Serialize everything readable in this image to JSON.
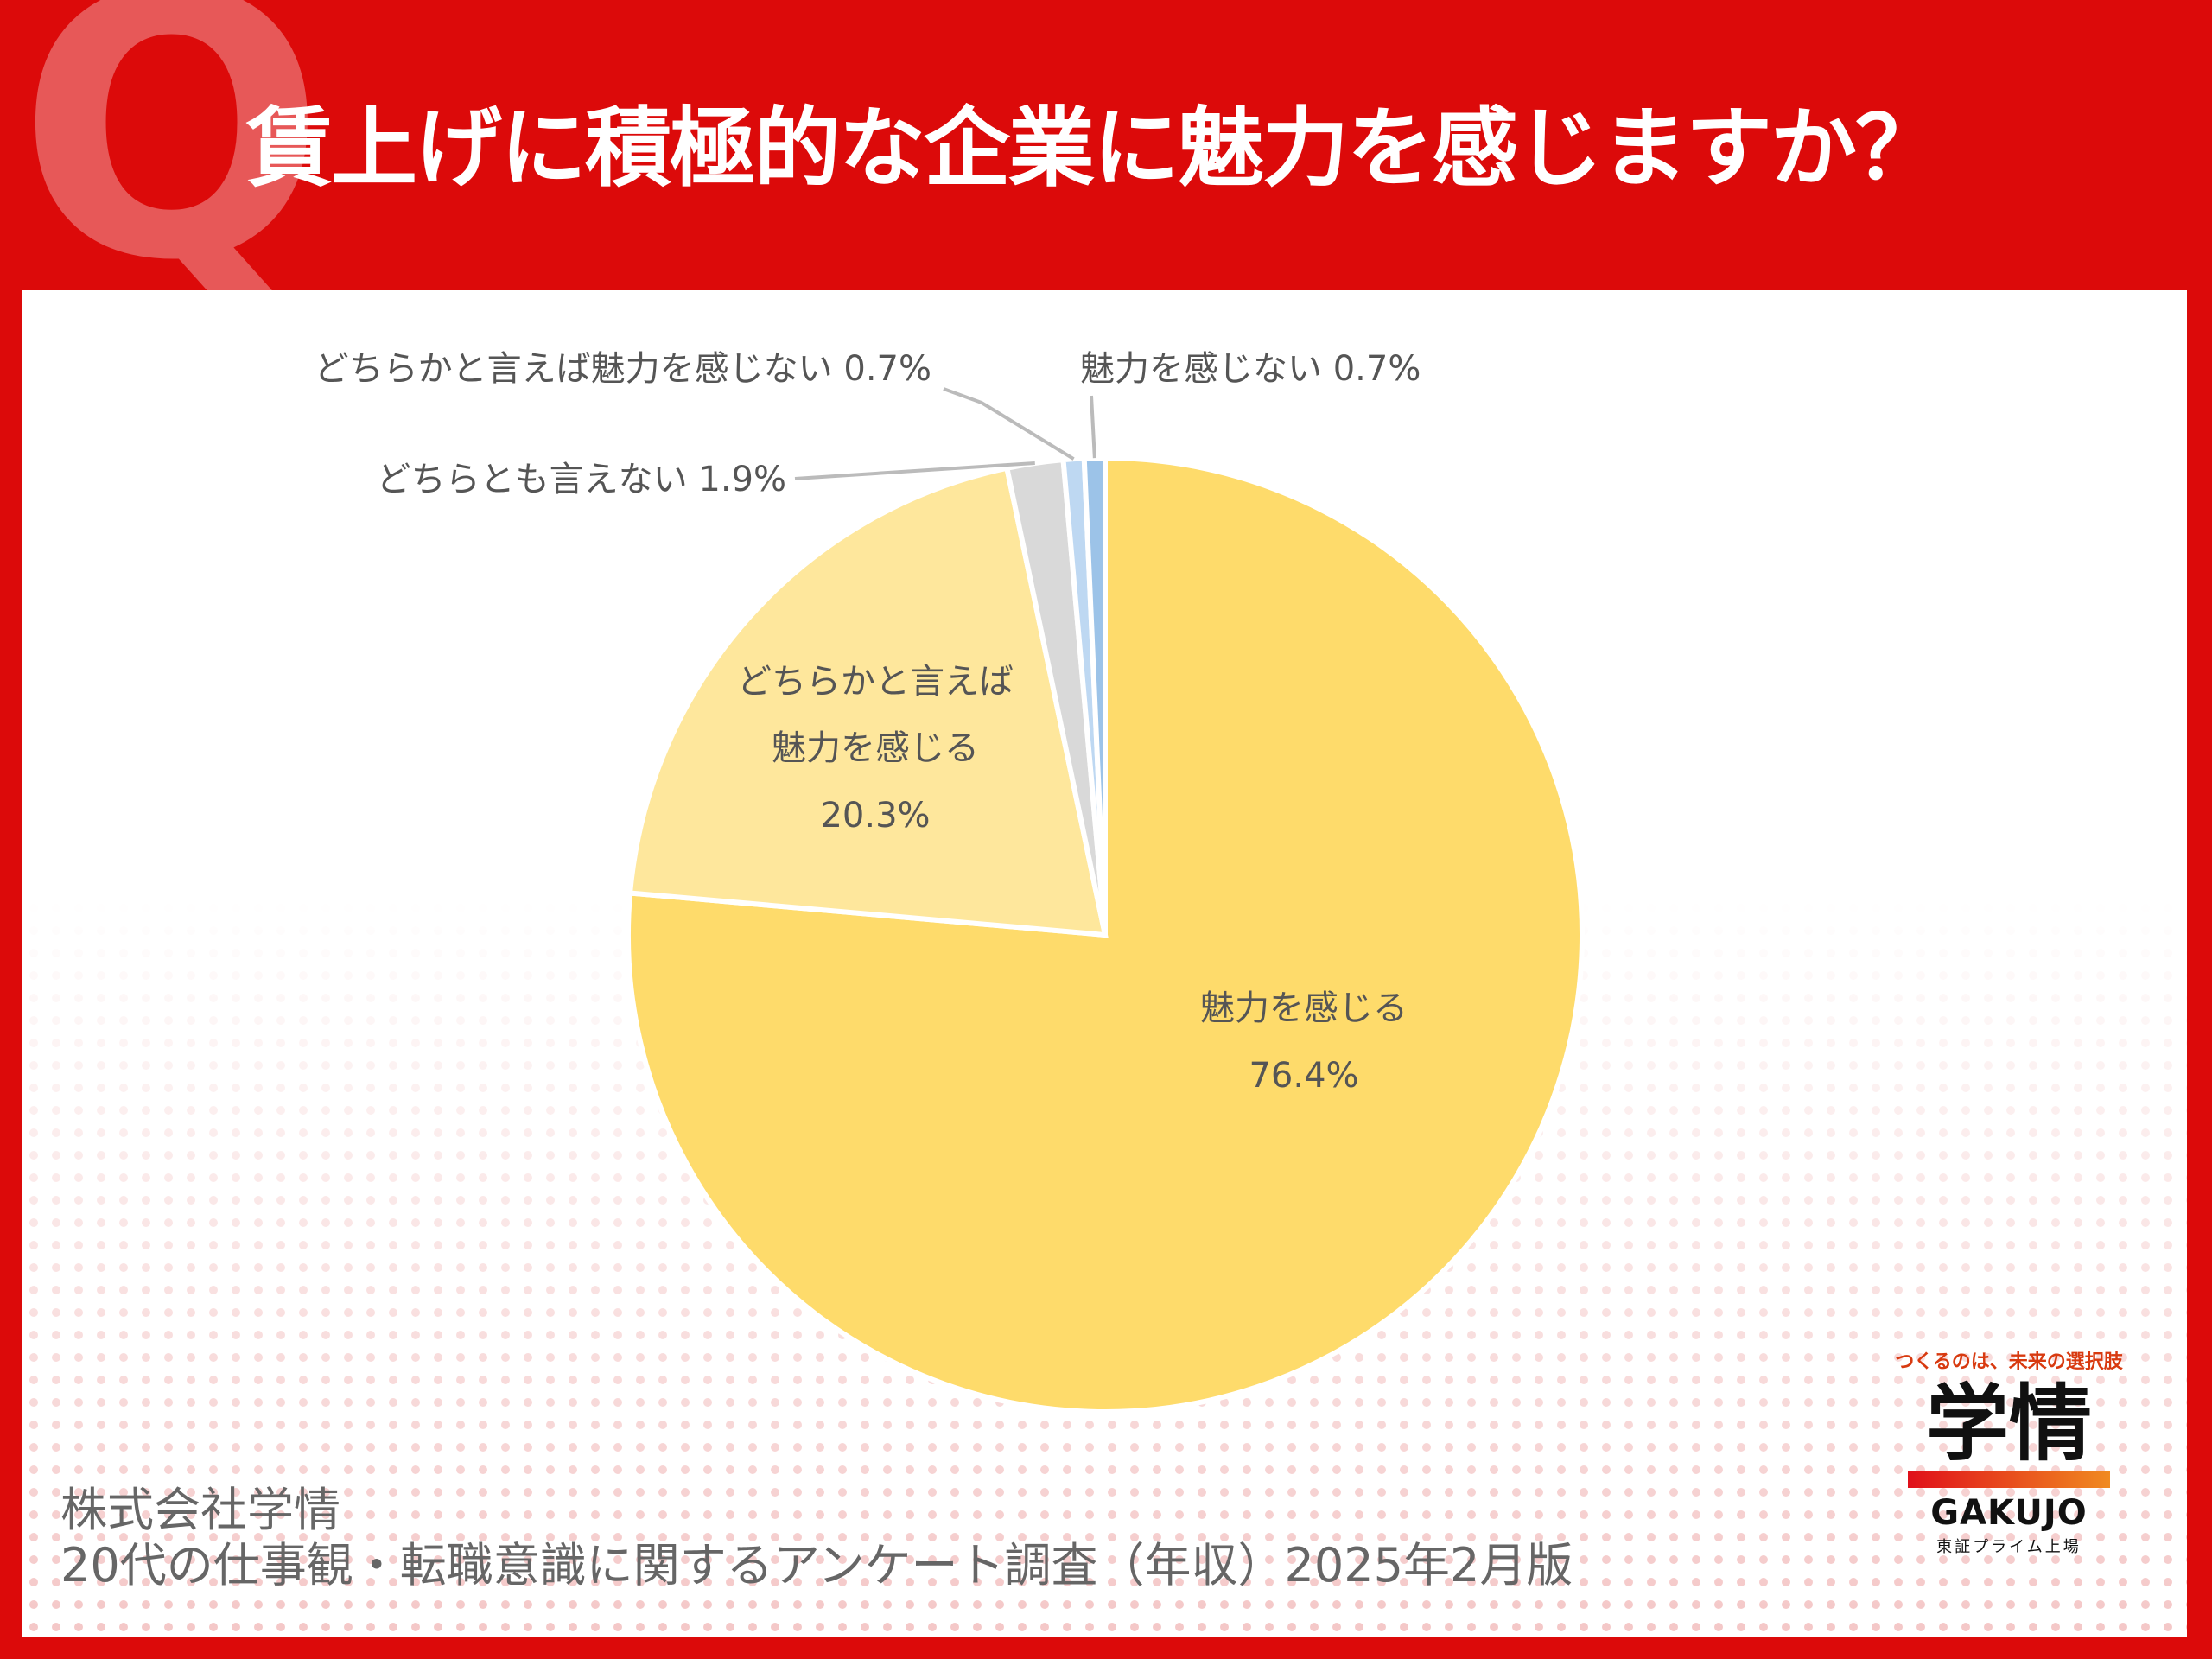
{
  "header": {
    "q_mark": "Q",
    "title": "賃上げに積極的な企業に魅力を感じますか？"
  },
  "colors": {
    "background": "#dc0a0a",
    "slice_1": "#fedb6b",
    "slice_2": "#fee79c",
    "slice_3": "#d9d9d9",
    "slice_4": "#bed8f2",
    "slice_5": "#9cc3e8"
  },
  "chart_data": {
    "type": "pie",
    "start_angle_deg": 0,
    "direction": "clockwise",
    "slices": [
      {
        "label": "魅力を感じる",
        "value": 76.4,
        "display": "76.4%"
      },
      {
        "label": "どちらかと言えば魅力を感じる",
        "label_lines": [
          "どちらかと言えば",
          "魅力を感じる"
        ],
        "value": 20.3,
        "display": "20.3%"
      },
      {
        "label": "どちらとも言えない",
        "value": 1.9,
        "display": "1.9%"
      },
      {
        "label": "どちらかと言えば魅力を感じない",
        "value": 0.7,
        "display": "0.7%"
      },
      {
        "label": "魅力を感じない",
        "value": 0.7,
        "display": "0.7%"
      }
    ]
  },
  "footer": {
    "line1": "株式会社学情",
    "line2": "20代の仕事観・転職意識に関するアンケート調査（年収）2025年2月版"
  },
  "logo": {
    "tagline": "つくるのは、未来の選択肢",
    "name": "学情",
    "name_en": "GAKUJO",
    "sub": "東証プライム上場"
  }
}
